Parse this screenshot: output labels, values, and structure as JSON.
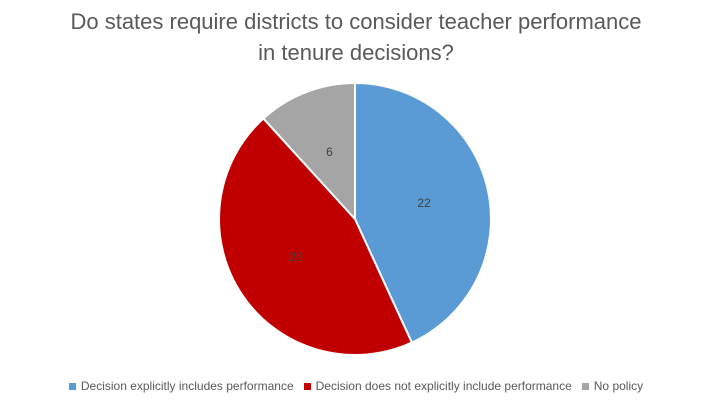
{
  "chart_data": {
    "type": "pie",
    "title_lines": [
      "Do states require districts to consider teacher performance",
      "in tenure decisions?"
    ],
    "series": [
      {
        "name": "Decision explicitly includes performance",
        "value": 22,
        "color": "#5b9bd5"
      },
      {
        "name": "Decision does not explicitly include performance",
        "value": 23,
        "color": "#c00000"
      },
      {
        "name": "No policy",
        "value": 6,
        "color": "#a5a5a5"
      }
    ],
    "start_angle": "12 o'clock",
    "direction": "clockwise",
    "legend_position": "bottom",
    "data_labels": true
  }
}
